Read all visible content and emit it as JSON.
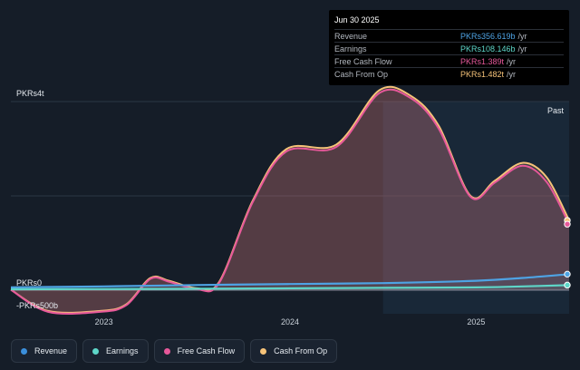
{
  "tooltip": {
    "date": "Jun 30 2025",
    "rows": [
      {
        "label": "Revenue",
        "value": "PKRs356.619b",
        "unit": "/yr",
        "color": "#4ea3e4"
      },
      {
        "label": "Earnings",
        "value": "PKRs108.146b",
        "unit": "/yr",
        "color": "#5ed6c8"
      },
      {
        "label": "Free Cash Flow",
        "value": "PKRs1.389t",
        "unit": "/yr",
        "color": "#e6589a"
      },
      {
        "label": "Cash From Op",
        "value": "PKRs1.482t",
        "unit": "/yr",
        "color": "#f6c379"
      }
    ]
  },
  "legend": [
    {
      "label": "Revenue",
      "color": "#3b8fdb"
    },
    {
      "label": "Earnings",
      "color": "#5ed6c8"
    },
    {
      "label": "Free Cash Flow",
      "color": "#e6589a"
    },
    {
      "label": "Cash From Op",
      "color": "#f6c379"
    }
  ],
  "chart_data": {
    "type": "area",
    "y_tick_labels": {
      "top": "PKRs4t",
      "zero": "PKRs0",
      "bottom": "-PKRs500b"
    },
    "past_label": "Past",
    "x_tick_labels": [
      {
        "label": "2023",
        "t": 2023.0
      },
      {
        "label": "2024",
        "t": 2024.0
      },
      {
        "label": "2025",
        "t": 2025.0
      }
    ],
    "ylim_billions": [
      -500,
      4000
    ],
    "xlim": [
      2022.5,
      2025.5
    ],
    "past_start": 2024.5,
    "series": [
      {
        "name": "Revenue",
        "color": "#4ea3e4",
        "x": [
          2022.5,
          2023.0,
          2023.5,
          2024.0,
          2024.5,
          2025.0,
          2025.25,
          2025.5
        ],
        "values": [
          60,
          80,
          110,
          130,
          150,
          200,
          260,
          340
        ]
      },
      {
        "name": "Earnings",
        "color": "#5ed6c8",
        "x": [
          2022.5,
          2023.0,
          2023.5,
          2024.0,
          2024.5,
          2025.0,
          2025.25,
          2025.5
        ],
        "values": [
          20,
          25,
          30,
          40,
          50,
          60,
          80,
          108
        ]
      },
      {
        "name": "Free Cash Flow",
        "color": "#e6589a",
        "x": [
          2022.5,
          2022.7,
          2022.98,
          2023.12,
          2023.25,
          2023.35,
          2023.5,
          2023.62,
          2023.8,
          2023.98,
          2024.25,
          2024.48,
          2024.65,
          2024.8,
          2024.97,
          2025.1,
          2025.25,
          2025.38,
          2025.5
        ],
        "values": [
          10,
          -460,
          -460,
          -320,
          240,
          180,
          20,
          160,
          1870,
          2940,
          3040,
          4180,
          4070,
          3420,
          1980,
          2280,
          2640,
          2290,
          1400
        ]
      },
      {
        "name": "Cash From Op",
        "color": "#f6c379",
        "x": [
          2022.5,
          2022.7,
          2022.98,
          2023.12,
          2023.25,
          2023.35,
          2023.5,
          2023.62,
          2023.8,
          2023.98,
          2024.25,
          2024.48,
          2024.65,
          2024.8,
          2024.97,
          2025.1,
          2025.25,
          2025.38,
          2025.5
        ],
        "values": [
          10,
          -440,
          -440,
          -300,
          260,
          200,
          40,
          180,
          1900,
          2990,
          3090,
          4240,
          4120,
          3480,
          2000,
          2320,
          2700,
          2390,
          1480
        ]
      }
    ]
  }
}
